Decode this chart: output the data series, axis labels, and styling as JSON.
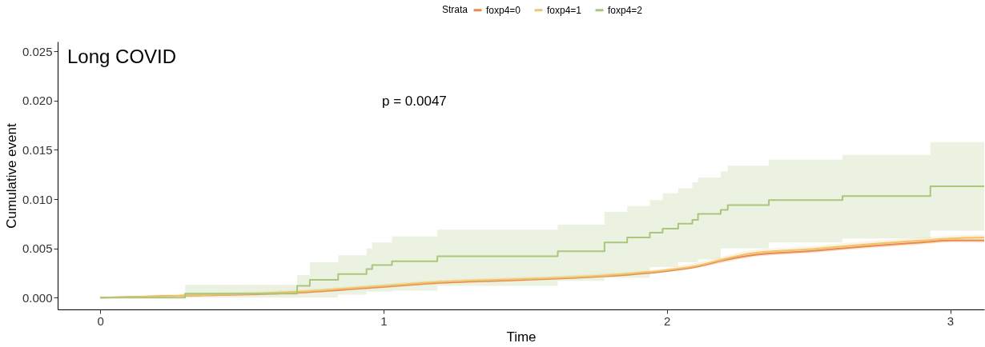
{
  "chart_data": {
    "type": "line",
    "title": "Long COVID",
    "xlabel": "Time",
    "ylabel": "Cumulative event",
    "legend_title": "Strata",
    "legend": "top",
    "grid": false,
    "annotations": [
      "p = 0.0047"
    ],
    "xlim": [
      -0.15,
      3.12
    ],
    "xticks": [
      0,
      1,
      2,
      3
    ],
    "ylim": [
      -0.0012,
      0.026
    ],
    "yticks": [
      {
        "value": 0,
        "label": "0.000"
      },
      {
        "value": 0.005,
        "label": "0.005"
      },
      {
        "value": 0.01,
        "label": "0.010"
      },
      {
        "value": 0.015,
        "label": "0.015"
      },
      {
        "value": 0.02,
        "label": "0.020"
      },
      {
        "value": 0.025,
        "label": "0.025"
      }
    ],
    "series": [
      {
        "name": "foxp4=0",
        "color": "#e98a50",
        "x": [
          0,
          0.3,
          0.7,
          1.0,
          1.2,
          1.5,
          1.8,
          2.0,
          2.1,
          2.2,
          2.3,
          2.5,
          2.7,
          2.9,
          3.0,
          3.12
        ],
        "values": [
          0,
          0.0002,
          0.0005,
          0.0011,
          0.0015,
          0.0018,
          0.0022,
          0.0027,
          0.0031,
          0.0038,
          0.0043,
          0.0047,
          0.0052,
          0.0056,
          0.0058,
          0.0058
        ],
        "lower": [
          0,
          0.0001,
          0.0004,
          0.001,
          0.0014,
          0.0017,
          0.0021,
          0.0026,
          0.003,
          0.0036,
          0.0041,
          0.0045,
          0.005,
          0.0054,
          0.0056,
          0.0056
        ],
        "upper": [
          0,
          0.0003,
          0.0006,
          0.0012,
          0.0016,
          0.0019,
          0.0023,
          0.0028,
          0.0032,
          0.004,
          0.0045,
          0.0049,
          0.0054,
          0.0058,
          0.006,
          0.006
        ]
      },
      {
        "name": "foxp4=1",
        "color": "#f0c46a",
        "x": [
          0,
          0.3,
          0.7,
          1.0,
          1.2,
          1.5,
          1.8,
          2.0,
          2.1,
          2.2,
          2.3,
          2.5,
          2.7,
          2.9,
          3.0,
          3.12
        ],
        "values": [
          0,
          0.0002,
          0.0006,
          0.0012,
          0.0016,
          0.0019,
          0.0023,
          0.0028,
          0.0032,
          0.0039,
          0.0045,
          0.0049,
          0.0054,
          0.0058,
          0.006,
          0.0061
        ],
        "lower": [
          0,
          0.0001,
          0.0004,
          0.001,
          0.0014,
          0.0017,
          0.0021,
          0.0026,
          0.003,
          0.0036,
          0.0042,
          0.0046,
          0.0051,
          0.0055,
          0.0057,
          0.0058
        ],
        "upper": [
          0,
          0.0004,
          0.0008,
          0.0014,
          0.0018,
          0.0021,
          0.0025,
          0.003,
          0.0035,
          0.0042,
          0.0048,
          0.0052,
          0.0057,
          0.0061,
          0.0063,
          0.0064
        ]
      },
      {
        "name": "foxp4=2",
        "type": "step",
        "color": "#a9c67a",
        "x": [
          0,
          0.3,
          0.695,
          0.74,
          0.84,
          0.94,
          0.96,
          1.03,
          1.19,
          1.615,
          1.78,
          1.86,
          1.94,
          1.985,
          2.04,
          2.09,
          2.11,
          2.19,
          2.215,
          2.36,
          2.62,
          2.93,
          3.12
        ],
        "values": [
          0,
          0.0004,
          0.0012,
          0.0018,
          0.0024,
          0.0029,
          0.0033,
          0.0037,
          0.0042,
          0.0047,
          0.0056,
          0.0061,
          0.0066,
          0.007,
          0.0075,
          0.0079,
          0.0085,
          0.0089,
          0.0094,
          0.0099,
          0.0103,
          0.0113,
          0.0113
        ],
        "lower": [
          0,
          0,
          0,
          0,
          0.0003,
          0.0006,
          0.0006,
          0.0007,
          0.0012,
          0.0017,
          0.002,
          0.002,
          0.0031,
          0.0031,
          0.0036,
          0.0036,
          0.0039,
          0.005,
          0.005,
          0.0056,
          0.006,
          0.0068,
          0.0068
        ],
        "upper": [
          0,
          0.0013,
          0.0023,
          0.0036,
          0.0043,
          0.005,
          0.0056,
          0.0062,
          0.0069,
          0.0074,
          0.0087,
          0.0093,
          0.0099,
          0.0106,
          0.0111,
          0.0117,
          0.0122,
          0.0128,
          0.0134,
          0.014,
          0.0145,
          0.0158,
          0.0158
        ]
      }
    ]
  }
}
